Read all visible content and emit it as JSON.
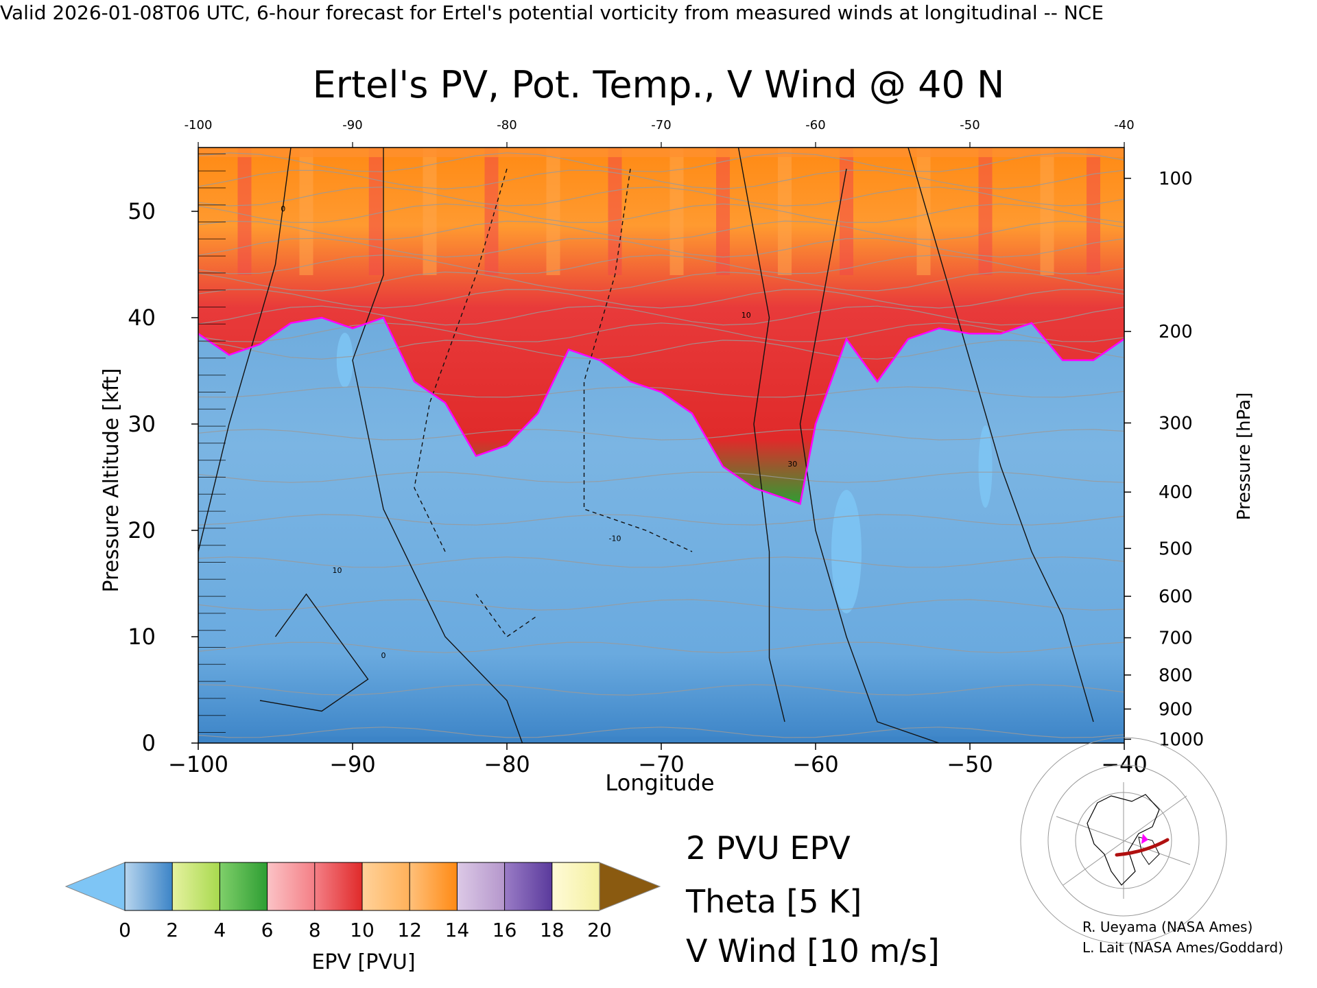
{
  "header": {
    "valid_line": "Valid 2026-01-08T06 UTC, 6-hour forecast for Ertel's potential vorticity from measured winds at longitudinal -- NCE"
  },
  "chart_data": {
    "type": "heatmap",
    "title": "Ertel's PV, Pot. Temp., V Wind @ 40 N",
    "xlabel": "Longitude",
    "ylabel": "Pressure Altitude [kft]",
    "y2label": "Pressure [hPa]",
    "xlim": [
      -100,
      -40
    ],
    "ylim": [
      0,
      56
    ],
    "x_ticks": [
      -100,
      -90,
      -80,
      -70,
      -60,
      -50,
      -40
    ],
    "x_tick_labels": [
      "−100",
      "−90",
      "−80",
      "−70",
      "−60",
      "−50",
      "−40"
    ],
    "x_top_tick_labels": [
      "-100",
      "-90",
      "-80",
      "-70",
      "-60",
      "-50",
      "-40"
    ],
    "y_ticks": [
      0,
      10,
      20,
      30,
      40,
      50
    ],
    "y_tick_labels": [
      "0",
      "10",
      "20",
      "30",
      "40",
      "50"
    ],
    "pressure_ticks": [
      {
        "label": "100",
        "kft": 53.1
      },
      {
        "label": "200",
        "kft": 38.7
      },
      {
        "label": "300",
        "kft": 30.1
      },
      {
        "label": "400",
        "kft": 23.6
      },
      {
        "label": "500",
        "kft": 18.3
      },
      {
        "label": "600",
        "kft": 13.8
      },
      {
        "label": "700",
        "kft": 9.9
      },
      {
        "label": "800",
        "kft": 6.4
      },
      {
        "label": "900",
        "kft": 3.2
      },
      {
        "label": "1000",
        "kft": 0.36
      }
    ],
    "tropopause_2pvu_kft": [
      [
        -100,
        38.5
      ],
      [
        -98,
        36.5
      ],
      [
        -96,
        37.5
      ],
      [
        -94,
        39.5
      ],
      [
        -92,
        40
      ],
      [
        -90,
        39
      ],
      [
        -88,
        40
      ],
      [
        -86,
        34
      ],
      [
        -84,
        32
      ],
      [
        -82,
        27
      ],
      [
        -80,
        28
      ],
      [
        -78,
        31
      ],
      [
        -76,
        37
      ],
      [
        -74,
        36
      ],
      [
        -72,
        34
      ],
      [
        -70,
        33
      ],
      [
        -68,
        31
      ],
      [
        -66,
        26
      ],
      [
        -64,
        24
      ],
      [
        -62,
        23
      ],
      [
        -61,
        22.5
      ],
      [
        -60,
        30
      ],
      [
        -58,
        38
      ],
      [
        -56,
        34
      ],
      [
        -54,
        38
      ],
      [
        -52,
        39
      ],
      [
        -50,
        38.5
      ],
      [
        -48,
        38.5
      ],
      [
        -46,
        39.5
      ],
      [
        -44,
        36
      ],
      [
        -42,
        36
      ],
      [
        -40,
        38
      ]
    ],
    "contour_labels": [
      "0",
      "10",
      "-10",
      "30"
    ],
    "colorbar": {
      "label": "EPV [PVU]",
      "min": 0,
      "max": 20,
      "tick_labels": [
        "0",
        "2",
        "4",
        "6",
        "8",
        "10",
        "12",
        "14",
        "16",
        "18",
        "20"
      ],
      "colors": [
        "#3c84c7",
        "#a8d94e",
        "#2e9e33",
        "#f47f86",
        "#e02a2a",
        "#ffb15a",
        "#ff8a14",
        "#b597cc",
        "#5a3a9c",
        "#f4f0a0"
      ],
      "under_color": "#7ec5f5",
      "over_color": "#8a5a10"
    },
    "legend": [
      {
        "label": "2 PVU EPV",
        "color": "#ff00ff"
      },
      {
        "label": "Theta [5 K]",
        "color": "#aaaaaa"
      },
      {
        "label": "V Wind [10 m/s]",
        "color": "#000000"
      }
    ]
  },
  "credits": {
    "line1": "R. Ueyama (NASA Ames)",
    "line2": "L. Lait (NASA Ames/Goddard)"
  }
}
